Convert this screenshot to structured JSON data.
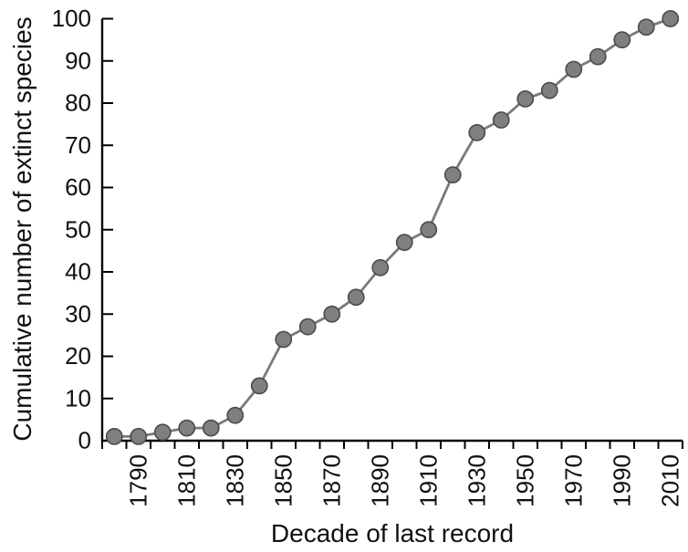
{
  "figure": {
    "background": "#ffffff"
  },
  "chart_data": {
    "type": "line",
    "title": "",
    "xlabel": "Decade of last record",
    "ylabel": "Cumulative number of extinct species",
    "categories": [
      1780,
      1790,
      1800,
      1810,
      1820,
      1830,
      1840,
      1850,
      1860,
      1870,
      1880,
      1890,
      1900,
      1910,
      1920,
      1930,
      1940,
      1950,
      1960,
      1970,
      1980,
      1990,
      2000,
      2010
    ],
    "values": [
      1,
      1,
      2,
      3,
      3,
      6,
      13,
      24,
      27,
      30,
      34,
      41,
      47,
      50,
      63,
      73,
      76,
      81,
      83,
      88,
      91,
      95,
      98,
      100
    ],
    "x_tick_labels": [
      "1790",
      "1810",
      "1830",
      "1850",
      "1870",
      "1890",
      "1910",
      "1930",
      "1950",
      "1970",
      "1990",
      "2010"
    ],
    "y_ticks": [
      0,
      10,
      20,
      30,
      40,
      50,
      60,
      70,
      80,
      90,
      100
    ],
    "ylim": [
      0,
      100
    ],
    "grid": "off",
    "legend": "none",
    "marker": "circle",
    "colors": {
      "line": "#7a7a7a",
      "marker_fill": "#7f7f7f",
      "marker_stroke": "#4c4c4c",
      "axis": "#000000",
      "text": "#111111"
    }
  }
}
